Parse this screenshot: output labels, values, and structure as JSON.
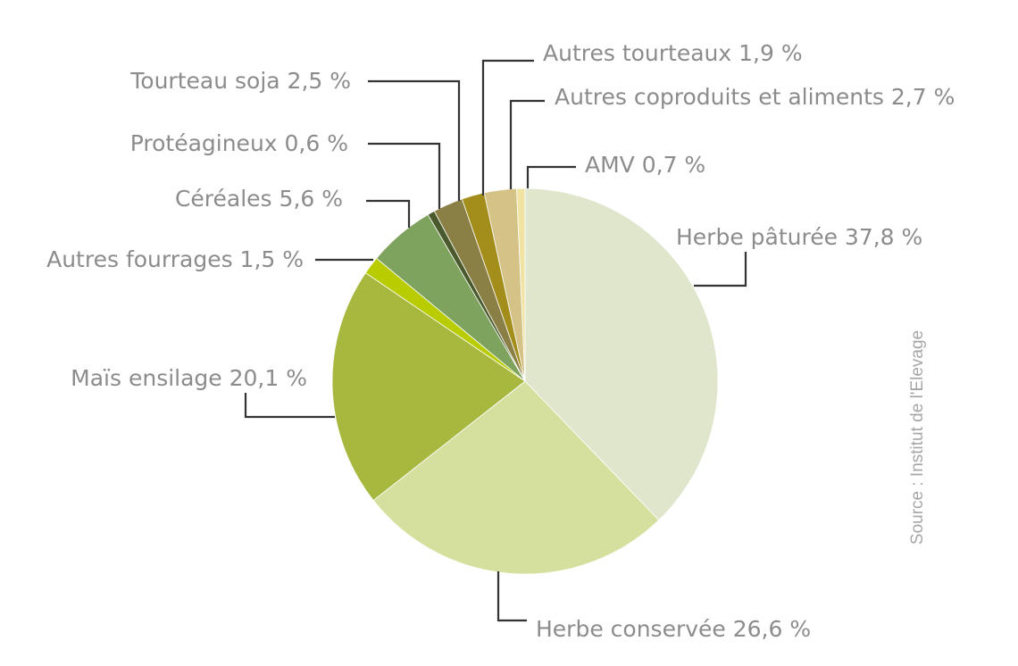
{
  "chart_data": {
    "type": "pie",
    "categories": [
      "Herbe pâturée",
      "Herbe conservée",
      "Maïs ensilage",
      "Autres fourrages",
      "Céréales",
      "Protéagineux",
      "Tourteau soja",
      "Autres tourteaux",
      "Autres coproduits et aliments",
      "AMV"
    ],
    "values": [
      37.8,
      26.6,
      20.1,
      1.5,
      5.6,
      0.6,
      2.5,
      1.9,
      2.7,
      0.7
    ],
    "labels": [
      "Herbe pâturée 37,8 %",
      "Herbe conservée 26,6 %",
      "Maïs ensilage 20,1 %",
      "Autres fourrages 1,5 %",
      "Céréales 5,6 %",
      "Protéagineux 0,6 %",
      "Tourteau soja 2,5 %",
      "Autres tourteaux 1,9 %",
      "Autres coproduits et aliments 2,7 %",
      "AMV 0,7 %"
    ],
    "colors": [
      "#dfe6cc",
      "#d5e09e",
      "#a8b83f",
      "#b8cc00",
      "#7ea35e",
      "#4a5a2c",
      "#8a7f45",
      "#a38e1c",
      "#d4c286",
      "#f0e3a3"
    ],
    "direction": "clockwise",
    "start": "top",
    "source": "Source : Institut de l'Elevage"
  }
}
